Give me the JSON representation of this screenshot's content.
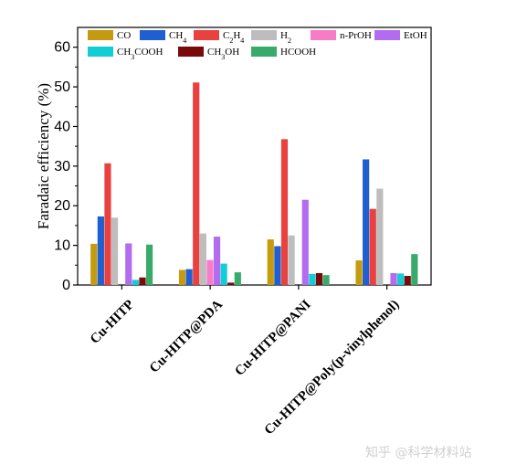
{
  "chart_data": {
    "type": "bar",
    "categories": [
      "Cu-HITP",
      "Cu-HITP@PDA",
      "Cu-HITP@PANI",
      "Cu-HITP@Poly(p-vinylphenol)"
    ],
    "ylabel": "Faradaic efficiency (%)",
    "ylim": [
      0,
      65
    ],
    "yticks": [
      0,
      10,
      20,
      30,
      40,
      50,
      60
    ],
    "grid": false,
    "legend_position": "top",
    "series": [
      {
        "name": "CO",
        "sub": "",
        "tail": "",
        "color": "#c49a0e",
        "values": [
          10.4,
          3.8,
          11.5,
          6.2
        ]
      },
      {
        "name": "CH",
        "sub": "4",
        "tail": "",
        "color": "#1f5fd0",
        "values": [
          17.3,
          4.0,
          9.8,
          31.7
        ]
      },
      {
        "name": "C",
        "sub": "2",
        "tail": "H",
        "sub2": "4",
        "color": "#e8413f",
        "values": [
          30.7,
          51.1,
          36.8,
          19.2
        ]
      },
      {
        "name": "H",
        "sub": "2",
        "tail": "",
        "color": "#bdbdbd",
        "values": [
          17.0,
          13.0,
          12.5,
          24.3
        ]
      },
      {
        "name": "n-PrOH",
        "sub": "",
        "tail": "",
        "color": "#f77cc8",
        "values": [
          0.0,
          6.3,
          0.0,
          0.0
        ]
      },
      {
        "name": "EtOH",
        "sub": "",
        "tail": "",
        "color": "#b36cf0",
        "values": [
          10.5,
          12.2,
          21.5,
          3.0
        ]
      },
      {
        "name": "CH",
        "sub": "3",
        "tail": "COOH",
        "color": "#12cdd4",
        "values": [
          1.3,
          5.4,
          2.8,
          2.9
        ]
      },
      {
        "name": "CH",
        "sub": "3",
        "tail": "OH",
        "color": "#7a0a0a",
        "values": [
          1.9,
          0.6,
          3.0,
          2.3
        ]
      },
      {
        "name": "HCOOH",
        "sub": "",
        "tail": "",
        "color": "#3aaa6a",
        "values": [
          10.2,
          3.2,
          2.5,
          7.8
        ]
      }
    ]
  },
  "watermark": "知乎 @科学材料站"
}
